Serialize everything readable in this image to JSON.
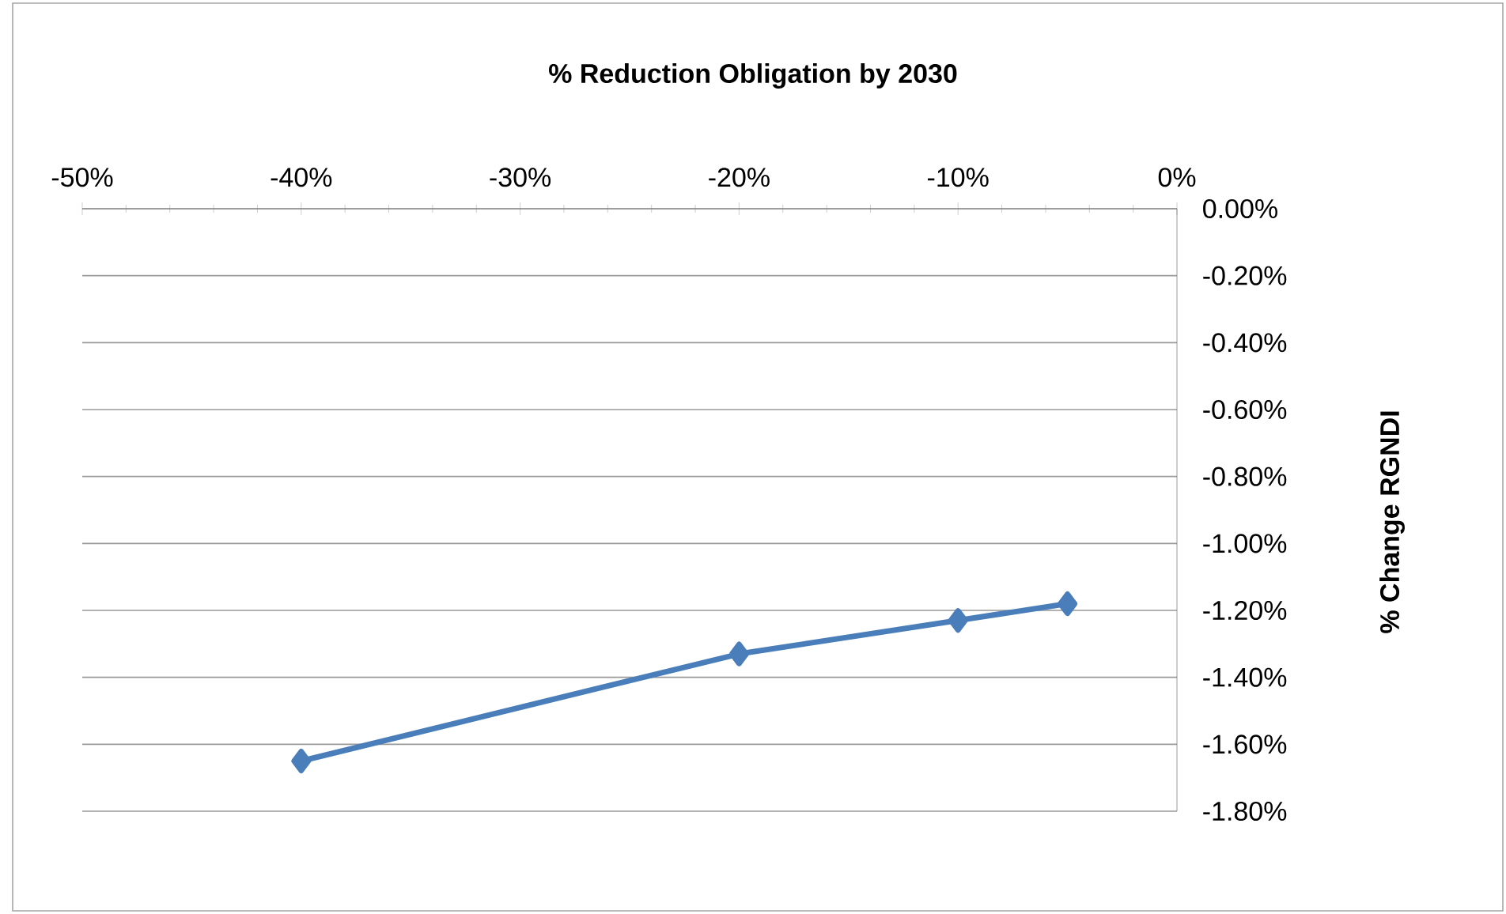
{
  "chart_data": {
    "type": "line",
    "title": "% Reduction Obligation by 2030",
    "ylabel": "% Change RGNDI",
    "x": [
      -40,
      -20,
      -10,
      -5
    ],
    "series": [
      {
        "color": "#4a7ebb",
        "values": [
          -1.65,
          -1.33,
          -1.23,
          -1.18
        ]
      }
    ],
    "xlim": [
      -50,
      0
    ],
    "xticks": [
      {
        "value": -50,
        "label": "-50%"
      },
      {
        "value": -40,
        "label": "-40%"
      },
      {
        "value": -30,
        "label": "-30%"
      },
      {
        "value": -20,
        "label": "-20%"
      },
      {
        "value": -10,
        "label": "-10%"
      },
      {
        "value": 0,
        "label": "0%"
      }
    ],
    "ylim": [
      -1.8,
      0
    ],
    "yticks": [
      {
        "value": 0,
        "label": "0.00%"
      },
      {
        "value": -0.2,
        "label": "-0.20%"
      },
      {
        "value": -0.4,
        "label": "-0.40%"
      },
      {
        "value": -0.6,
        "label": "-0.60%"
      },
      {
        "value": -0.8,
        "label": "-0.80%"
      },
      {
        "value": -1.0,
        "label": "-1.00%"
      },
      {
        "value": -1.2,
        "label": "-1.20%"
      },
      {
        "value": -1.4,
        "label": "-1.40%"
      },
      {
        "value": -1.6,
        "label": "-1.60%"
      },
      {
        "value": -1.8,
        "label": "-1.80%"
      }
    ],
    "grid": "y",
    "marker": "diamond",
    "line_style": "solid"
  }
}
